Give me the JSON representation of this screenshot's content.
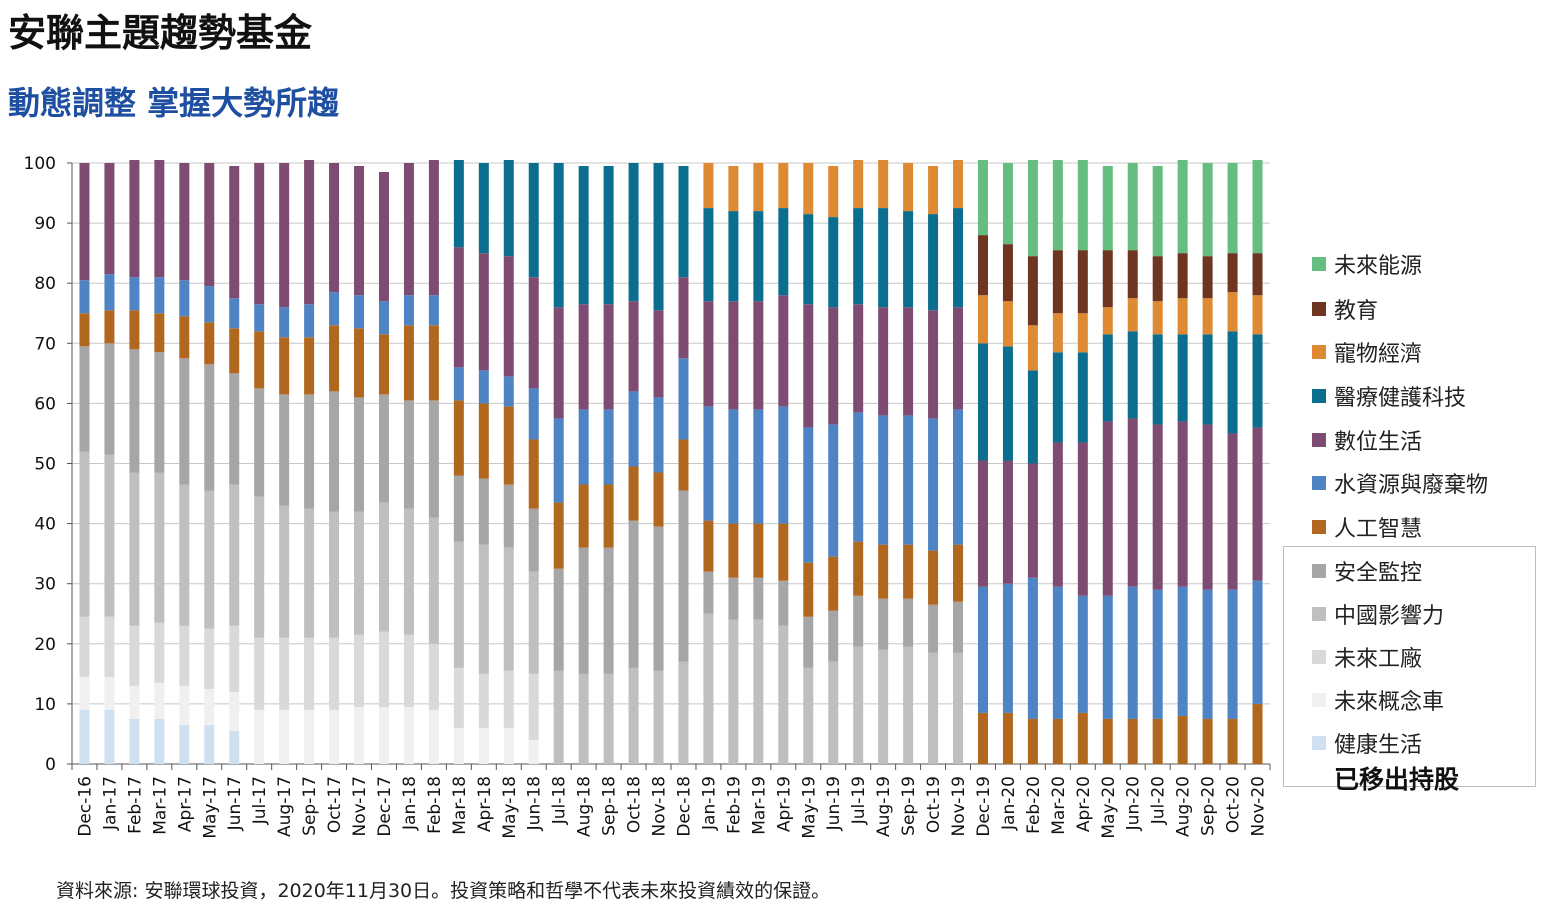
{
  "page": {
    "title": "安聯主題趨勢基金",
    "subtitle": "動態調整  掌握大勢所趨",
    "source": "資料來源: 安聯環球投資，2020年11月30日。投資策略和哲學不代表未來投資績效的保證。",
    "removed_label": "已移出持股"
  },
  "chart_data": {
    "type": "bar",
    "stacked": true,
    "ylim": [
      0,
      100
    ],
    "yticks": [
      0,
      10,
      20,
      30,
      40,
      50,
      60,
      70,
      80,
      90,
      100
    ],
    "grid": true,
    "legend_position": "right",
    "categories": [
      "Dec-16",
      "Jan-17",
      "Feb-17",
      "Mar-17",
      "Apr-17",
      "May-17",
      "Jun-17",
      "Jul-17",
      "Aug-17",
      "Sep-17",
      "Oct-17",
      "Nov-17",
      "Dec-17",
      "Jan-18",
      "Feb-18",
      "Mar-18",
      "Apr-18",
      "May-18",
      "Jun-18",
      "Jul-18",
      "Aug-18",
      "Sep-18",
      "Oct-18",
      "Nov-18",
      "Dec-18",
      "Jan-19",
      "Feb-19",
      "Mar-19",
      "Apr-19",
      "May-19",
      "Jun-19",
      "Jul-19",
      "Aug-19",
      "Sep-19",
      "Oct-19",
      "Nov-19",
      "Dec-19",
      "Jan-20",
      "Feb-20",
      "Mar-20",
      "Apr-20",
      "May-20",
      "Jun-20",
      "Jul-20",
      "Aug-20",
      "Sep-20",
      "Oct-20",
      "Nov-20"
    ],
    "series": [
      {
        "name": "健康生活",
        "color": "#cfe0f1",
        "values": [
          9,
          9,
          7.5,
          7.5,
          6.5,
          6.5,
          5.5,
          0,
          0,
          0,
          0,
          0,
          0,
          0,
          0,
          0,
          0,
          0,
          0,
          0,
          0,
          0,
          0,
          0,
          0,
          0,
          0,
          0,
          0,
          0,
          0,
          0,
          0,
          0,
          0,
          0,
          0,
          0,
          0,
          0,
          0,
          0,
          0,
          0,
          0,
          0,
          0,
          0
        ]
      },
      {
        "name": "未來概念車",
        "color": "#f0f0f0",
        "values": [
          5.5,
          5.5,
          5.5,
          6,
          6.5,
          6,
          6.5,
          9,
          9,
          9,
          9,
          9.5,
          9.5,
          9.5,
          9,
          6,
          6,
          6,
          4,
          0,
          0,
          0,
          0,
          0,
          0,
          0,
          0,
          0,
          0,
          0,
          0,
          0,
          0,
          0,
          0,
          0,
          0,
          0,
          0,
          0,
          0,
          0,
          0,
          0,
          0,
          0,
          0,
          0
        ]
      },
      {
        "name": "未來工廠",
        "color": "#d9d9d9",
        "values": [
          10,
          10,
          10,
          10,
          10,
          10,
          11,
          12,
          12,
          12,
          12,
          12,
          12.5,
          12,
          11,
          10,
          9,
          9.5,
          11,
          0,
          0,
          0,
          0,
          0,
          0,
          0,
          0,
          0,
          0,
          0,
          0,
          0,
          0,
          0,
          0,
          0,
          0,
          0,
          0,
          0,
          0,
          0,
          0,
          0,
          0,
          0,
          0,
          0
        ]
      },
      {
        "name": "中國影響力",
        "color": "#bfbfbf",
        "values": [
          27.5,
          27,
          25.5,
          25,
          23.5,
          23,
          23.5,
          23.5,
          22,
          21.5,
          21,
          20.5,
          21.5,
          21,
          21,
          21,
          21.5,
          20.5,
          17,
          15.5,
          15,
          15,
          16,
          15.5,
          17,
          25,
          24,
          24,
          23,
          16,
          17,
          19.5,
          19,
          19.5,
          18.5,
          18.5,
          0,
          0,
          0,
          0,
          0,
          0,
          0,
          0,
          0,
          0,
          0,
          0
        ]
      },
      {
        "name": "安全監控",
        "color": "#a6a6a6",
        "values": [
          17.5,
          18.5,
          20.5,
          20,
          21,
          21,
          18.5,
          18,
          18.5,
          19,
          20,
          19,
          18,
          18,
          19.5,
          11,
          11,
          10.5,
          10.5,
          17,
          21,
          21,
          24.5,
          24,
          28.5,
          7,
          7,
          7,
          7.5,
          8.5,
          8.5,
          8.5,
          8.5,
          8,
          8,
          8.5,
          0,
          0,
          0,
          0,
          0,
          0,
          0,
          0,
          0,
          0,
          0,
          0
        ]
      },
      {
        "name": "人工智慧",
        "color": "#b1681e",
        "values": [
          5.5,
          5.5,
          6.5,
          6.5,
          7,
          7,
          7.5,
          9.5,
          9.5,
          9.5,
          11,
          11.5,
          10,
          12.5,
          12.5,
          12.5,
          12.5,
          13,
          11.5,
          11,
          10.5,
          10.5,
          9,
          9,
          8.5,
          8.5,
          9,
          9,
          9.5,
          9,
          9,
          9,
          9,
          9,
          9,
          9.5,
          8.5,
          8.5,
          7.5,
          7.5,
          8.5,
          7.5,
          7.5,
          7.5,
          8,
          7.5,
          7.5,
          10
        ]
      },
      {
        "name": "水資源與廢棄物",
        "color": "#4e83c4",
        "values": [
          5.5,
          6,
          5.5,
          6,
          6,
          6,
          5,
          4.5,
          5,
          5.5,
          5.5,
          5.5,
          5.5,
          5,
          5,
          5.5,
          5.5,
          5,
          8.5,
          14,
          12.5,
          12.5,
          12.5,
          12.5,
          13.5,
          19,
          19,
          19,
          19.5,
          22.5,
          22,
          21.5,
          21.5,
          21.5,
          22,
          22.5,
          21,
          21.5,
          23.5,
          22,
          19.5,
          20.5,
          22,
          21.5,
          21.5,
          21.5,
          21.5,
          20.5
        ]
      },
      {
        "name": "數位生活",
        "color": "#7e4c72",
        "values": [
          19.5,
          18.5,
          19.5,
          19.5,
          19.5,
          20.5,
          22,
          23.5,
          24,
          24,
          21.5,
          21.5,
          21.5,
          22,
          22.5,
          20,
          19.5,
          20,
          18.5,
          18.5,
          17.5,
          17.5,
          15,
          14.5,
          13.5,
          17.5,
          18,
          18,
          18.5,
          20.5,
          19.5,
          18,
          18,
          18,
          18,
          17,
          21,
          20.5,
          19,
          24,
          25.5,
          29,
          28,
          27.5,
          27.5,
          27.5,
          26,
          25.5
        ]
      },
      {
        "name": "醫療健護科技",
        "color": "#0c6e8e",
        "values": [
          0,
          0,
          0,
          0,
          0,
          0,
          0,
          0,
          0,
          0,
          0,
          0,
          0,
          0,
          0,
          14.5,
          15,
          16,
          19,
          24,
          23,
          23,
          23,
          24.5,
          18.5,
          15.5,
          15,
          15,
          14.5,
          15,
          15,
          16,
          16.5,
          16,
          16,
          16.5,
          19.5,
          19,
          15.5,
          15,
          15,
          14.5,
          14.5,
          15,
          14.5,
          15,
          17,
          15.5
        ]
      },
      {
        "name": "寵物經濟",
        "color": "#de8a32",
        "values": [
          0,
          0,
          0,
          0,
          0,
          0,
          0,
          0,
          0,
          0,
          0,
          0,
          0,
          0,
          0,
          0,
          0,
          0,
          0,
          0,
          0,
          0,
          0,
          0,
          0,
          7.5,
          7.5,
          8,
          7.5,
          8.5,
          8.5,
          8,
          8,
          8,
          8,
          8,
          8,
          7.5,
          7.5,
          6.5,
          6.5,
          4.5,
          5.5,
          5.5,
          6,
          6,
          6.5,
          6.5
        ]
      },
      {
        "name": "教育",
        "color": "#6e3520",
        "values": [
          0,
          0,
          0,
          0,
          0,
          0,
          0,
          0,
          0,
          0,
          0,
          0,
          0,
          0,
          0,
          0,
          0,
          0,
          0,
          0,
          0,
          0,
          0,
          0,
          0,
          0,
          0,
          0,
          0,
          0,
          0,
          0,
          0,
          0,
          0,
          0,
          10,
          9.5,
          11.5,
          10.5,
          10.5,
          9.5,
          8,
          7.5,
          7.5,
          7,
          6.5,
          7
        ]
      },
      {
        "name": "未來能源",
        "color": "#66bd80",
        "values": [
          0,
          0,
          0,
          0,
          0,
          0,
          0,
          0,
          0,
          0,
          0,
          0,
          0,
          0,
          0,
          0,
          0,
          0,
          0,
          0,
          0,
          0,
          0,
          0,
          0,
          0,
          0,
          0,
          0,
          0,
          0,
          0,
          0,
          0,
          0,
          0,
          12.5,
          13.5,
          16,
          15,
          15,
          14,
          14.5,
          15,
          15.5,
          15.5,
          15,
          15.5
        ]
      }
    ]
  },
  "legend_order": [
    "未來能源",
    "教育",
    "寵物經濟",
    "醫療健護科技",
    "數位生活",
    "水資源與廢棄物",
    "人工智慧",
    "安全監控",
    "中國影響力",
    "未來工廠",
    "未來概念車",
    "健康生活"
  ]
}
